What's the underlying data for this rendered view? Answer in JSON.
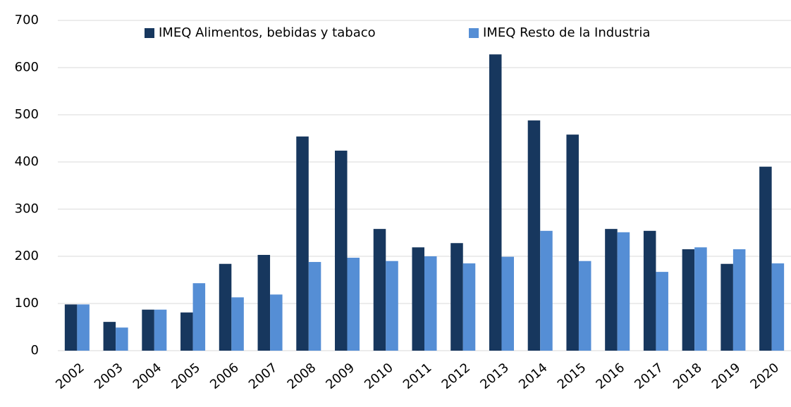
{
  "chart_data": {
    "type": "bar",
    "categories": [
      "2002",
      "2003",
      "2004",
      "2005",
      "2006",
      "2007",
      "2008",
      "2009",
      "2010",
      "2011",
      "2012",
      "2013",
      "2014",
      "2015",
      "2016",
      "2017",
      "2018",
      "2019",
      "2020"
    ],
    "series": [
      {
        "name": "IMEQ Alimentos, bebidas y tabaco",
        "color": "#17375e",
        "values": [
          98,
          61,
          87,
          81,
          184,
          203,
          454,
          424,
          258,
          219,
          228,
          628,
          488,
          458,
          258,
          254,
          215,
          184,
          390
        ]
      },
      {
        "name": "IMEQ Resto de la Industria",
        "color": "#558ed5",
        "values": [
          98,
          49,
          87,
          143,
          113,
          119,
          188,
          197,
          190,
          200,
          185,
          199,
          254,
          190,
          251,
          167,
          219,
          215,
          185
        ]
      }
    ],
    "ylim": [
      0,
      700
    ],
    "yticks": [
      0,
      100,
      200,
      300,
      400,
      500,
      600,
      700
    ],
    "grid": true,
    "legend": "top"
  }
}
